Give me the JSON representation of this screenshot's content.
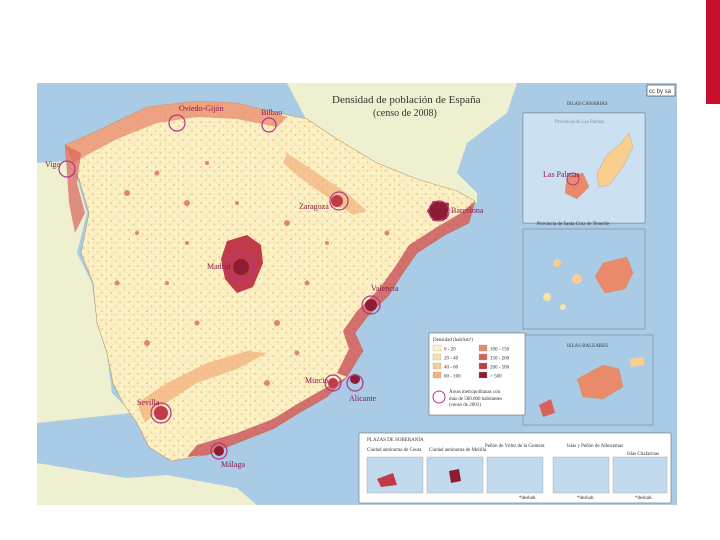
{
  "map": {
    "title_line1": "Densidad de población de España",
    "title_line2": "(censo de 2008)",
    "license_badge": "cc by sa",
    "cities": {
      "oviedo_gijon": "Oviedo-Gijón",
      "bilbao": "Bilbao",
      "vigo": "Vigo",
      "zaragoza": "Zaragoza",
      "barcelona": "Barcelona",
      "madrid": "Madrid",
      "valencia": "Valencia",
      "murcia": "Murcia",
      "alicante": "Alicante",
      "sevilla": "Sevilla",
      "malaga": "Málaga",
      "las_palmas": "Las Palmas"
    },
    "insets": {
      "canarias_title": "ISLAS CANARIAS",
      "las_palmas_title": "Provincia de Las Palmas",
      "tenerife_title": "Provincia de Santa Cruz de Tenerife",
      "baleares_title": "ISLAS BALEARES"
    },
    "legend": {
      "title": "Densidad (hab/km²)",
      "items": [
        "0 - 20",
        "20 - 40",
        "40 - 60",
        "60 - 100",
        "100 - 150",
        "150 - 200",
        "200 - 500",
        "> 500"
      ],
      "metro_label": "Áreas metropolitanas con",
      "metro_sub1": "más de 500.000 habitantes",
      "metro_sub2": "(censo de 2001)",
      "colors": [
        "#fdf2c4",
        "#fbe3a8",
        "#f8cf8f",
        "#f3b07c",
        "#e98a6b",
        "#d9635a",
        "#c03a4a",
        "#8e1c34"
      ]
    },
    "plazas": {
      "title": "PLAZAS DE SOBERANÍA",
      "ceuta": "Ciudad autónoma de Ceuta",
      "melilla": "Ciudad autónoma de Melilla",
      "penon_velez": "Peñón de Vélez de la Gomera",
      "alhucemas": "Islas y Peñón de Alhucemas",
      "chafarinas": "Islas Chafarinas",
      "note1": "*deshab.",
      "note2": "*deshab.",
      "note3": "*deshab."
    },
    "colors": {
      "land_base": "#fcf2c6",
      "neighbor": "#eef0cf",
      "sea": "#a9cbe6",
      "dense": "#c03a4a",
      "circle": "#b5338a"
    }
  }
}
